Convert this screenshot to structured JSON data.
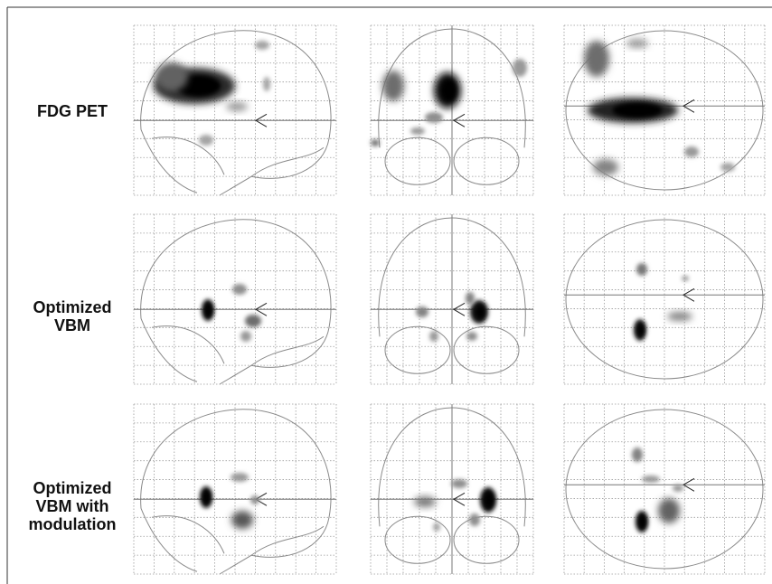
{
  "rows": [
    {
      "label_lines": [
        "FDG PET"
      ]
    },
    {
      "label_lines": [
        "Optimized",
        "VBM"
      ]
    },
    {
      "label_lines": [
        "Optimized",
        "VBM with",
        "modulation"
      ]
    }
  ]
}
